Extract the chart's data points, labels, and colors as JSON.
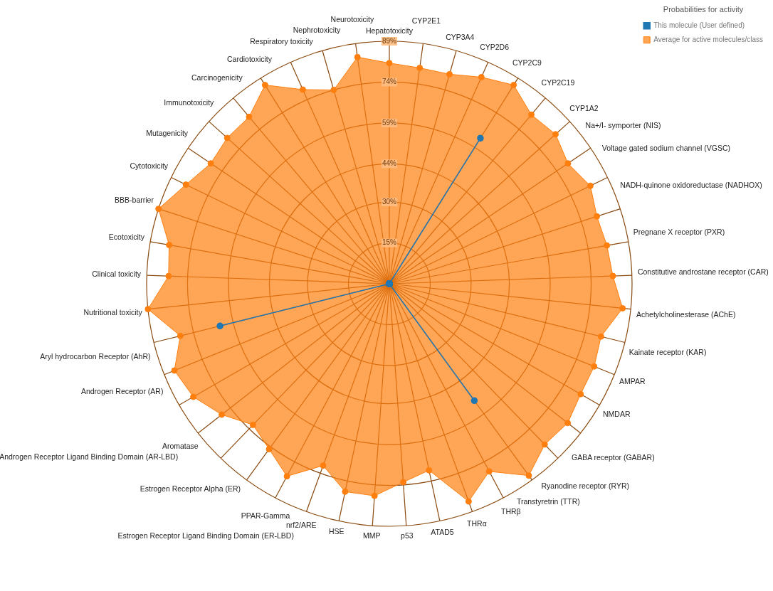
{
  "chart_data": {
    "type": "radar",
    "legend_title": "Probabilities for activity",
    "legend": "top right",
    "grid": true,
    "marker": "circle",
    "categories": [
      "Hepatotoxicity",
      "CYP2E1",
      "CYP3A4",
      "CYP2D6",
      "CYP2C9",
      "CYP2C19",
      "CYP1A2",
      "Na+/I- symporter (NIS)",
      "Voltage gated sodium channel (VGSC)",
      "NADH-quinone oxidoreductase (NADHOX)",
      "Pregnane X receptor (PXR)",
      "Constitutive androstane receptor (CAR)",
      "Achetylcholinesterase (AChE)",
      "Kainate receptor (KAR)",
      "AMPAR",
      "NMDAR",
      "GABA receptor (GABAR)",
      "Ryanodine receptor (RYR)",
      "Transtyretrin (TTR)",
      "THRβ",
      "THRα",
      "ATAD5",
      "p53",
      "MMP",
      "HSE",
      "nrf2/ARE",
      "PPAR-Gamma",
      "Estrogen Receptor Ligand Binding Domain (ER-LBD)",
      "Estrogen Receptor Alpha (ER)",
      "Aromatase",
      "Androgen Receptor Ligand Binding Domain (AR-LBD)",
      "Androgen Receptor (AR)",
      "Aryl hydrocarbon Receptor (AhR)",
      "Nutritional toxicity",
      "Clinical toxicity",
      "Ecotoxicity",
      "BBB-barrier",
      "Cytotoxicity",
      "Mutagenicity",
      "Immunotoxicity",
      "Carcinogenicity",
      "Cardiotoxicity",
      "Respiratory toxicity",
      "Nephrotoxicity",
      "Neurotoxicity"
    ],
    "series": [
      {
        "name": "This molecule (User defined)",
        "color": "#1f77b4",
        "values": [
          0,
          0,
          0,
          0,
          63,
          0,
          0,
          0,
          0,
          0,
          0,
          0,
          0,
          0,
          0,
          0,
          0,
          0,
          53,
          0,
          0,
          0,
          0,
          0,
          0,
          0,
          0,
          0,
          0,
          0,
          0,
          0,
          64,
          0,
          0,
          0,
          0,
          0,
          0,
          0,
          0,
          0,
          0,
          0,
          0
        ]
      },
      {
        "name": "Average for active molecules/class",
        "color": "#ff7f0e",
        "values": [
          81,
          80,
          80,
          83,
          86,
          81,
          82,
          79,
          82,
          80,
          81,
          82,
          86,
          80,
          81,
          81,
          83,
          82,
          87,
          78,
          85,
          70,
          73,
          78,
          78,
          71,
          80,
          75,
          72,
          78,
          83,
          85,
          79,
          89,
          81,
          82,
          89,
          83,
          79,
          80,
          80,
          86,
          78,
          74,
          84
        ]
      }
    ],
    "ylim": [
      0,
      89
    ],
    "yticks": [
      {
        "value": 15,
        "label": "15%"
      },
      {
        "value": 30,
        "label": "30%"
      },
      {
        "value": 44,
        "label": "44%"
      },
      {
        "value": 59,
        "label": "59%"
      },
      {
        "value": 74,
        "label": "74%"
      },
      {
        "value": 89,
        "label": "89%"
      }
    ]
  }
}
